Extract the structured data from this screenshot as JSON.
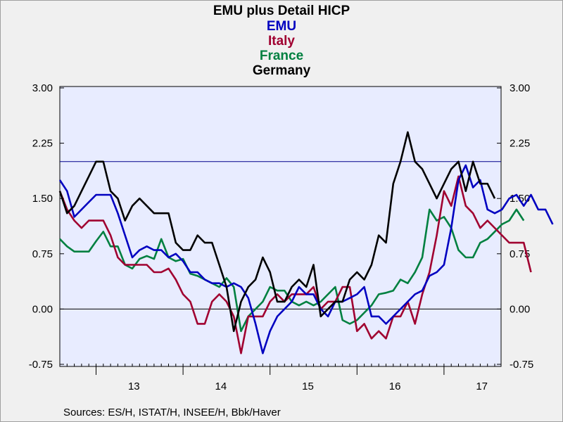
{
  "chart_data": {
    "type": "line",
    "title": "EMU plus Detail HICP",
    "xlabel": "",
    "ylabel": "",
    "x_tick_labels": [
      "13",
      "14",
      "15",
      "16",
      "17"
    ],
    "y_tick_labels": [
      "3.00",
      "2.25",
      "1.50",
      "0.75",
      "0.00",
      "-0.75"
    ],
    "y_ticks": [
      3.0,
      2.25,
      1.5,
      0.75,
      0.0,
      -0.75
    ],
    "ylim": [
      -0.8,
      3.05
    ],
    "x_start": "2012-08",
    "reference_lines": [
      2.0,
      0.0
    ],
    "grid": false,
    "legend": "top-center, stacked below title",
    "series": [
      {
        "name": "EMU",
        "color": "#0000c0",
        "values": [
          1.75,
          1.6,
          1.25,
          1.35,
          1.45,
          1.55,
          1.55,
          1.55,
          1.3,
          1.0,
          0.7,
          0.8,
          0.85,
          0.8,
          0.8,
          0.7,
          0.75,
          0.65,
          0.5,
          0.5,
          0.4,
          0.35,
          0.35,
          0.3,
          0.35,
          0.3,
          0.15,
          -0.2,
          -0.6,
          -0.3,
          -0.1,
          0.0,
          0.1,
          0.3,
          0.2,
          0.2,
          0.0,
          -0.1,
          0.1,
          0.1,
          0.15,
          0.2,
          0.3,
          -0.1,
          -0.1,
          -0.2,
          -0.1,
          0.0,
          0.1,
          0.2,
          0.25,
          0.45,
          0.5,
          0.6,
          1.1,
          1.75,
          1.95,
          1.65,
          1.75,
          1.35,
          1.3,
          1.35,
          1.5,
          1.55,
          1.4,
          1.55,
          1.35,
          1.35,
          1.15
        ]
      },
      {
        "name": "Italy",
        "color": "#a00030",
        "values": [
          1.6,
          1.35,
          1.2,
          1.1,
          1.2,
          1.2,
          1.2,
          1.0,
          0.7,
          0.6,
          0.6,
          0.6,
          0.6,
          0.5,
          0.5,
          0.55,
          0.4,
          0.2,
          0.1,
          -0.2,
          -0.2,
          0.1,
          0.2,
          0.1,
          -0.1,
          -0.6,
          -0.1,
          -0.1,
          -0.1,
          0.1,
          0.2,
          0.1,
          0.2,
          0.2,
          0.2,
          0.3,
          0.0,
          0.1,
          0.1,
          0.3,
          0.3,
          -0.3,
          -0.2,
          -0.4,
          -0.3,
          -0.4,
          -0.1,
          -0.1,
          0.1,
          -0.2,
          0.2,
          0.5,
          1.0,
          1.6,
          1.4,
          1.8,
          1.4,
          1.3,
          1.1,
          1.2,
          1.1,
          1.0,
          0.9,
          0.9,
          0.9,
          0.5
        ]
      },
      {
        "name": "France",
        "color": "#008040",
        "values": [
          0.95,
          0.85,
          0.78,
          0.78,
          0.78,
          0.92,
          1.05,
          0.85,
          0.85,
          0.6,
          0.55,
          0.68,
          0.72,
          0.68,
          0.95,
          0.7,
          0.65,
          0.68,
          0.48,
          0.45,
          0.4,
          0.35,
          0.3,
          0.42,
          0.3,
          -0.3,
          -0.1,
          0.0,
          0.1,
          0.3,
          0.25,
          0.25,
          0.1,
          0.05,
          0.1,
          0.05,
          0.1,
          0.2,
          0.3,
          -0.15,
          -0.2,
          -0.15,
          -0.05,
          0.05,
          0.2,
          0.22,
          0.25,
          0.4,
          0.35,
          0.5,
          0.7,
          1.35,
          1.2,
          1.25,
          1.1,
          0.8,
          0.7,
          0.7,
          0.9,
          0.95,
          1.05,
          1.15,
          1.2,
          1.35,
          1.2
        ]
      },
      {
        "name": "Germany",
        "color": "#000000",
        "values": [
          1.6,
          1.3,
          1.4,
          1.6,
          1.8,
          2.0,
          2.0,
          1.6,
          1.5,
          1.2,
          1.4,
          1.5,
          1.4,
          1.3,
          1.3,
          1.3,
          0.9,
          0.8,
          0.8,
          1.0,
          0.9,
          0.9,
          0.6,
          0.3,
          -0.3,
          0.1,
          0.3,
          0.4,
          0.7,
          0.5,
          0.1,
          0.1,
          0.3,
          0.4,
          0.3,
          0.6,
          -0.1,
          0.0,
          0.1,
          0.1,
          0.4,
          0.5,
          0.4,
          0.6,
          1.0,
          0.9,
          1.7,
          2.0,
          2.4,
          2.0,
          1.9,
          1.7,
          1.5,
          1.7,
          1.9,
          2.0,
          1.6,
          2.0,
          1.7,
          1.7,
          1.5
        ]
      }
    ]
  },
  "footer": {
    "sources": "Sources:  ES/H, ISTAT/H, INSEE/H, Bbk/Haver"
  }
}
